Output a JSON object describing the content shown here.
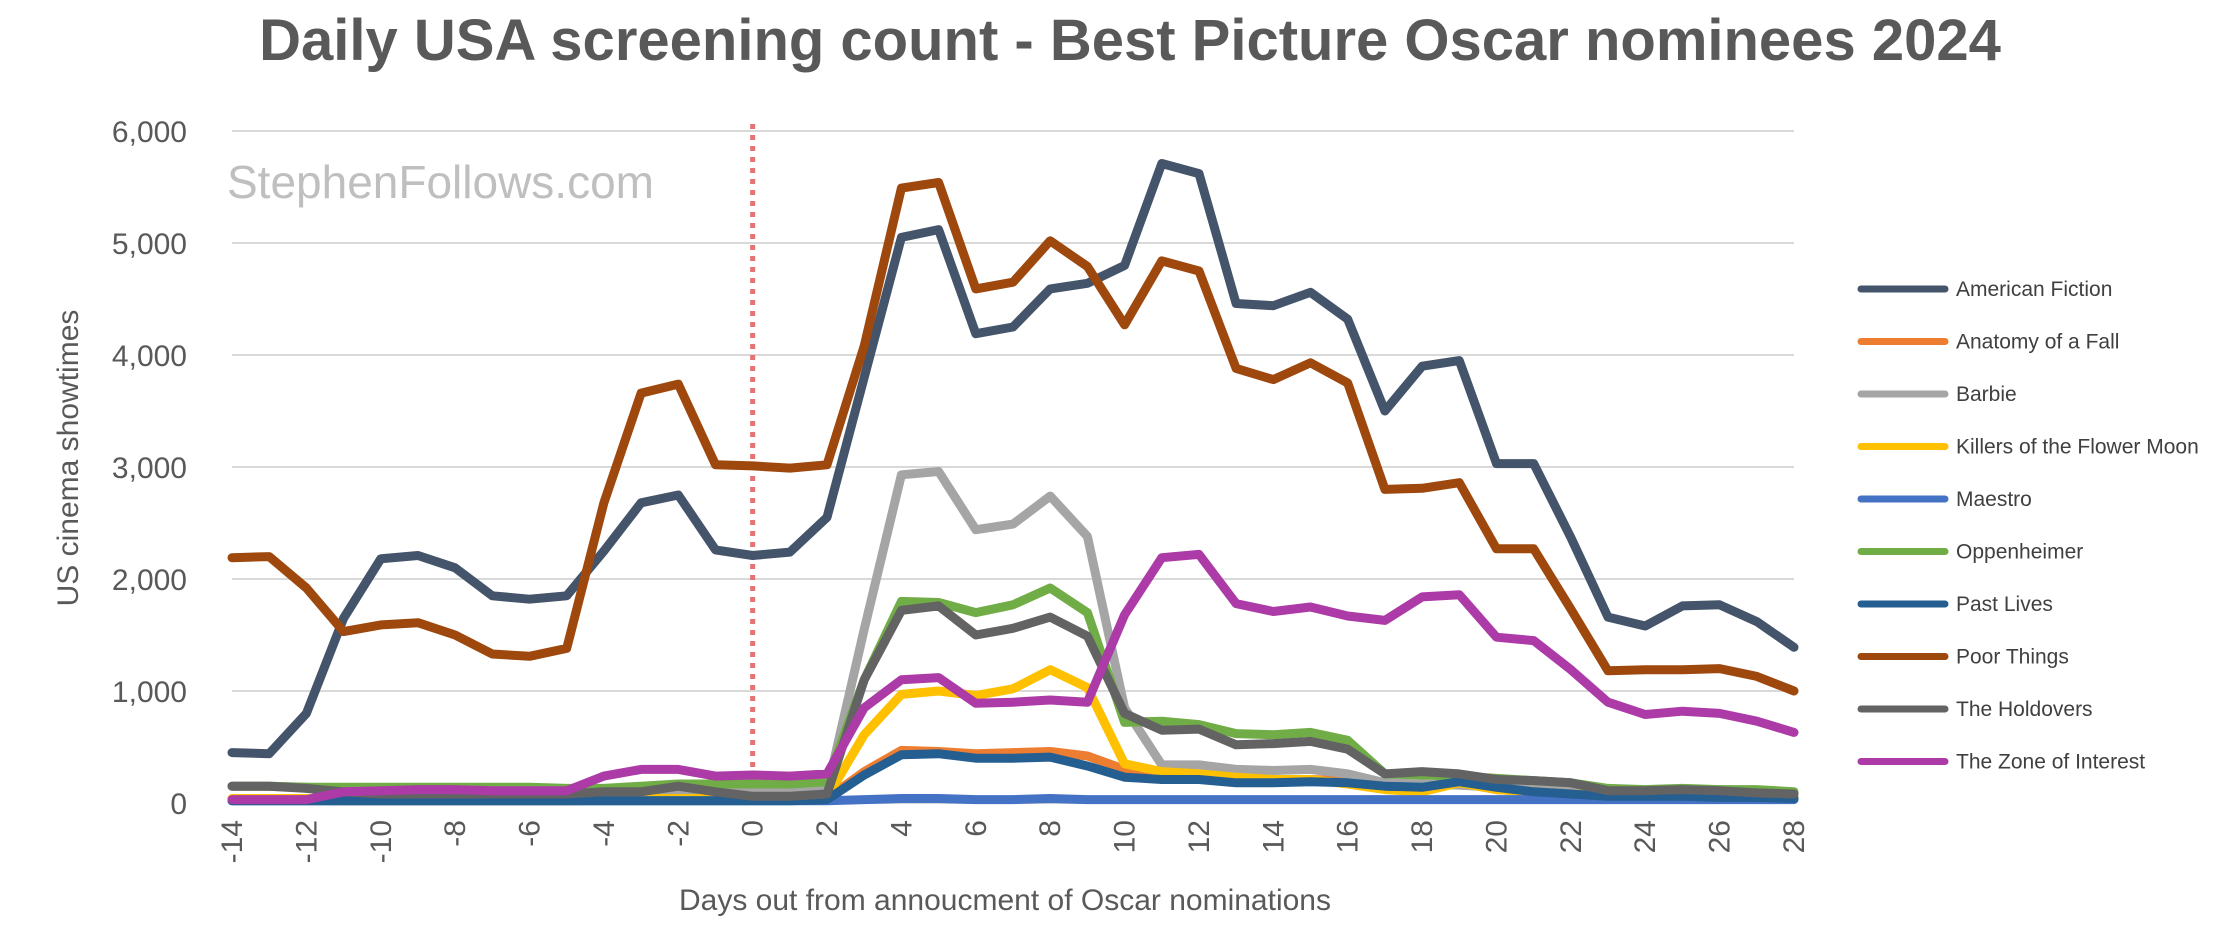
{
  "chart_data": {
    "type": "line",
    "title": "Daily USA screening count - Best Picture Oscar nominees 2024",
    "watermark": "StephenFollows.com",
    "xlabel": "Days out from annoucment of Oscar nominations",
    "ylabel": "US cinema showtimes",
    "xlim": [
      -14,
      28
    ],
    "ylim": [
      0,
      6000
    ],
    "x_ticks": [
      "-14",
      "-12",
      "-10",
      "-8",
      "-6",
      "-4",
      "-2",
      "0",
      "2",
      "4",
      "6",
      "8",
      "10",
      "12",
      "14",
      "16",
      "18",
      "20",
      "22",
      "24",
      "26",
      "28"
    ],
    "y_ticks": [
      "0",
      "1,000",
      "2,000",
      "3,000",
      "4,000",
      "5,000",
      "6,000"
    ],
    "y_tick_values": [
      0,
      1000,
      2000,
      3000,
      4000,
      5000,
      6000
    ],
    "grid": true,
    "reference_line": {
      "x": 0,
      "color": "#e57373",
      "style": "dotted"
    },
    "legend_position": "right",
    "x": [
      -14,
      -13,
      -12,
      -11,
      -10,
      -9,
      -8,
      -7,
      -6,
      -5,
      -4,
      -3,
      -2,
      -1,
      0,
      1,
      2,
      3,
      4,
      5,
      6,
      7,
      8,
      9,
      10,
      11,
      12,
      13,
      14,
      15,
      16,
      17,
      18,
      19,
      20,
      21,
      22,
      23,
      24,
      25,
      26,
      27,
      28
    ],
    "series": [
      {
        "name": "American Fiction",
        "color": "#44546a",
        "values": [
          450,
          440,
          800,
          1650,
          2180,
          2210,
          2100,
          1850,
          1820,
          1850,
          2250,
          2680,
          2750,
          2260,
          2210,
          2240,
          2550,
          3800,
          5050,
          5120,
          4190,
          4250,
          4590,
          4640,
          4800,
          5710,
          5620,
          4460,
          4440,
          4560,
          4320,
          3500,
          3900,
          3950,
          3030,
          3030,
          2370,
          1660,
          1580,
          1760,
          1770,
          1620,
          1390
        ]
      },
      {
        "name": "Anatomy of a Fall",
        "color": "#ed7d31",
        "values": [
          30,
          30,
          25,
          20,
          20,
          20,
          20,
          20,
          20,
          20,
          25,
          30,
          30,
          30,
          30,
          30,
          40,
          280,
          470,
          460,
          440,
          450,
          460,
          420,
          300,
          260,
          250,
          220,
          210,
          210,
          200,
          160,
          140,
          180,
          120,
          100,
          90,
          70,
          60,
          60,
          50,
          50,
          40
        ]
      },
      {
        "name": "Barbie",
        "color": "#a5a5a5",
        "values": [
          150,
          150,
          140,
          120,
          110,
          110,
          110,
          100,
          100,
          100,
          110,
          110,
          110,
          110,
          100,
          100,
          110,
          1550,
          2930,
          2960,
          2440,
          2490,
          2740,
          2380,
          850,
          340,
          340,
          300,
          290,
          300,
          260,
          180,
          170,
          160,
          140,
          130,
          120,
          110,
          100,
          100,
          90,
          90,
          80
        ]
      },
      {
        "name": "Killers of the Flower Moon",
        "color": "#ffc000",
        "values": [
          40,
          40,
          40,
          40,
          40,
          40,
          40,
          40,
          40,
          40,
          40,
          40,
          40,
          40,
          40,
          40,
          50,
          610,
          970,
          1000,
          960,
          1020,
          1190,
          1030,
          350,
          280,
          260,
          230,
          210,
          210,
          170,
          120,
          100,
          180,
          120,
          100,
          80,
          70,
          60,
          60,
          60,
          50,
          50
        ]
      },
      {
        "name": "Maestro",
        "color": "#4472c4",
        "values": [
          20,
          20,
          20,
          20,
          20,
          20,
          20,
          20,
          20,
          20,
          20,
          20,
          20,
          20,
          20,
          20,
          20,
          30,
          40,
          40,
          30,
          30,
          40,
          30,
          30,
          30,
          30,
          30,
          30,
          30,
          30,
          30,
          30,
          30,
          30,
          30,
          30,
          30,
          30,
          30,
          30,
          30,
          30
        ]
      },
      {
        "name": "Oppenheimer",
        "color": "#70ad47",
        "values": [
          150,
          150,
          140,
          140,
          140,
          140,
          140,
          140,
          140,
          130,
          130,
          150,
          170,
          170,
          170,
          170,
          190,
          1100,
          1800,
          1790,
          1700,
          1770,
          1920,
          1700,
          720,
          730,
          700,
          620,
          610,
          630,
          560,
          260,
          250,
          240,
          220,
          200,
          180,
          130,
          120,
          130,
          120,
          120,
          100
        ]
      },
      {
        "name": "Past Lives",
        "color": "#255e91",
        "values": [
          20,
          20,
          20,
          20,
          20,
          20,
          20,
          20,
          20,
          20,
          20,
          20,
          20,
          20,
          20,
          20,
          30,
          250,
          430,
          440,
          400,
          400,
          410,
          330,
          230,
          210,
          210,
          180,
          180,
          190,
          180,
          150,
          140,
          190,
          140,
          100,
          80,
          60,
          60,
          60,
          50,
          50,
          40
        ]
      },
      {
        "name": "Poor Things",
        "color": "#9e480e",
        "values": [
          2190,
          2200,
          1920,
          1530,
          1590,
          1610,
          1500,
          1330,
          1310,
          1380,
          2680,
          3660,
          3740,
          3020,
          3010,
          2990,
          3020,
          4080,
          5490,
          5540,
          4590,
          4650,
          5020,
          4790,
          4270,
          4840,
          4750,
          3880,
          3780,
          3930,
          3750,
          2800,
          2810,
          2860,
          2270,
          2270,
          1730,
          1180,
          1190,
          1190,
          1200,
          1130,
          1000
        ]
      },
      {
        "name": "The Holdovers",
        "color": "#636363",
        "values": [
          150,
          150,
          130,
          100,
          80,
          80,
          80,
          80,
          80,
          80,
          100,
          100,
          150,
          100,
          60,
          60,
          80,
          1100,
          1720,
          1760,
          1500,
          1560,
          1660,
          1490,
          800,
          650,
          660,
          520,
          530,
          550,
          480,
          260,
          280,
          260,
          210,
          200,
          180,
          110,
          110,
          120,
          110,
          90,
          80
        ]
      },
      {
        "name": "The Zone of Interest",
        "color": "#ad3ba7",
        "values": [
          30,
          30,
          30,
          100,
          110,
          120,
          120,
          110,
          110,
          110,
          240,
          300,
          300,
          240,
          250,
          240,
          260,
          850,
          1100,
          1120,
          890,
          900,
          920,
          900,
          1680,
          2190,
          2220,
          1780,
          1710,
          1750,
          1670,
          1630,
          1840,
          1860,
          1480,
          1450,
          1190,
          900,
          790,
          820,
          800,
          730,
          630
        ]
      }
    ]
  }
}
